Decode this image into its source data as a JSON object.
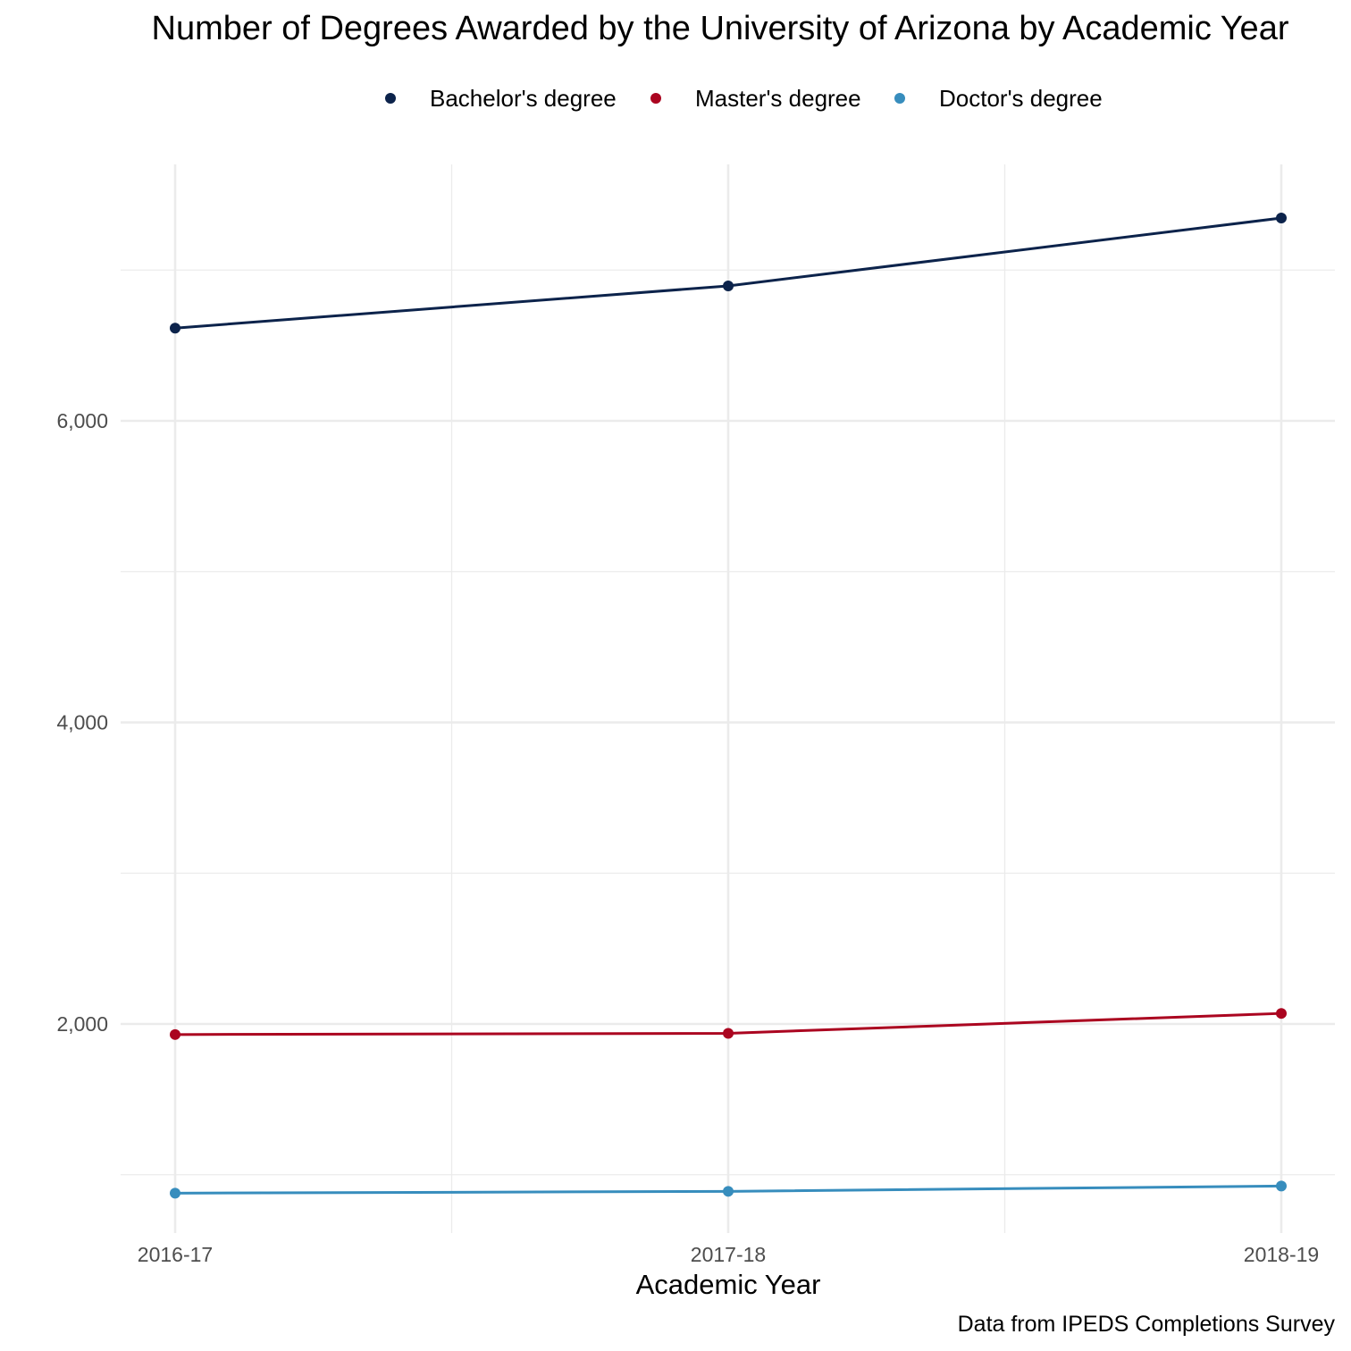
{
  "chart_data": {
    "type": "line",
    "title": "Number of Degrees Awarded by the University of Arizona by Academic Year",
    "xlabel": "Academic Year",
    "ylabel": "",
    "caption": "Data from IPEDS Completions Survey",
    "categories": [
      "2016-17",
      "2017-18",
      "2018-19"
    ],
    "y_ticks": [
      2000,
      4000,
      6000
    ],
    "y_tick_labels": [
      "2,000",
      "4,000",
      "6,000"
    ],
    "ylim": [
      700,
      7780
    ],
    "grid": true,
    "legend_position": "top",
    "series": [
      {
        "name": "Bachelor's degree",
        "color": "#0c234b",
        "values": [
          6615,
          6895,
          7345
        ]
      },
      {
        "name": "Master's degree",
        "color": "#ab0520",
        "values": [
          1930,
          1938,
          2070
        ]
      },
      {
        "name": "Doctor's degree",
        "color": "#378dbd",
        "values": [
          878,
          890,
          925
        ]
      }
    ]
  }
}
